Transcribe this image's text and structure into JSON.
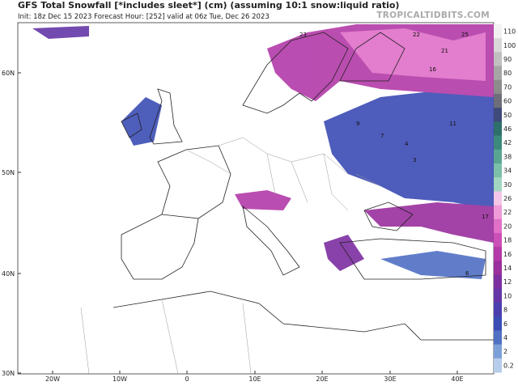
{
  "header": {
    "title": "GFS Total Snowfall [*includes sleet*] (cm) (assuming 10:1 snow:liquid ratio)",
    "subtitle": "Init: 18z Dec 15 2023   Forecast Hour: [252]   valid at 06z Tue, Dec 26 2023",
    "site": "TROPICALTIDBITS.COM"
  },
  "axes": {
    "lat_labels": [
      "60N",
      "50N",
      "40N",
      "30N"
    ],
    "lon_labels": [
      "20W",
      "10W",
      "0",
      "10E",
      "20E",
      "30E",
      "40E"
    ]
  },
  "colorbar": {
    "labels": [
      "110",
      "100",
      "90",
      "80",
      "70",
      "60",
      "50",
      "46",
      "42",
      "38",
      "34",
      "30",
      "26",
      "22",
      "20",
      "18",
      "16",
      "14",
      "12",
      "10",
      "8",
      "6",
      "4",
      "2",
      "0.2"
    ],
    "colors": [
      "#f2f2f2",
      "#d9d9d9",
      "#c0c0c0",
      "#a6a6a6",
      "#8c8c8c",
      "#6e6e7a",
      "#3f4a7a",
      "#2f6f6a",
      "#3c8a7c",
      "#5aa592",
      "#7cbfa8",
      "#a3d6c0",
      "#f5c6e8",
      "#ee9bd8",
      "#e070c8",
      "#cc4fb8",
      "#b33aa8",
      "#9a2f9e",
      "#7d2ea0",
      "#6436a6",
      "#4b3fae",
      "#3b4cb4",
      "#5070c4",
      "#7ea0d8",
      "#b6cdec"
    ]
  },
  "map_labels": [
    "23",
    "22",
    "21",
    "25",
    "16",
    "7",
    "4",
    "3",
    "9",
    "17",
    "11",
    "6"
  ]
}
